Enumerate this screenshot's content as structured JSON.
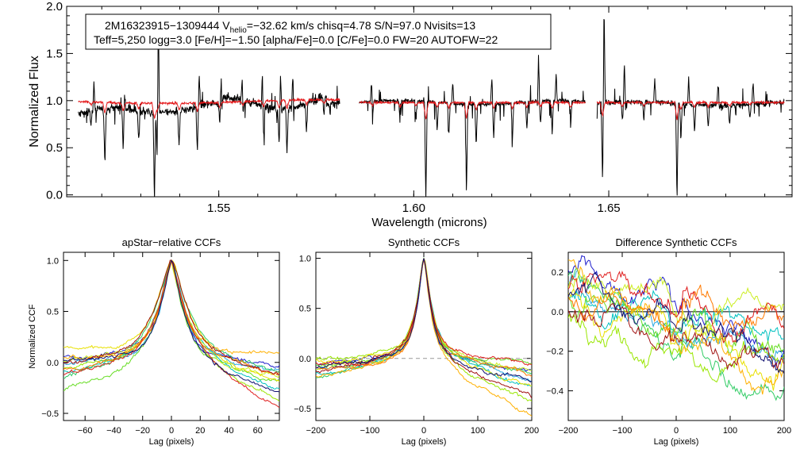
{
  "chart_data": [
    {
      "type": "line",
      "title": "",
      "xlabel": "Wavelength (microns)",
      "ylabel": "Normalized Flux",
      "xlim": [
        1.511,
        1.697
      ],
      "ylim": [
        -0.02,
        2.0
      ],
      "xticks": [
        "1.55",
        "1.60",
        "1.65"
      ],
      "yticks": [
        "0.0",
        "0.5",
        "1.0",
        "1.5",
        "2.0"
      ],
      "info_lines": {
        "line1_a": "2M16323915−1309444  V",
        "line1_sub": "helio",
        "line1_b": "=−32.62 km/s  chisq=4.78  S/N=97.0  Nvisits=13",
        "line2": "Teff=5,250 logg=3.0 [Fe/H]=−1.50 [alpha/Fe]=0.0 [C/Fe]=0.0 FW=20 AUTOFW=22"
      },
      "detectors": [
        {
          "range": [
            1.514,
            1.581
          ],
          "slope": 0.55,
          "wiggle": 0.07
        },
        {
          "range": [
            1.586,
            1.644
          ],
          "slope": 0.0,
          "wiggle": 0.03
        },
        {
          "range": [
            1.647,
            1.695
          ],
          "slope": -0.1,
          "wiggle": 0.05
        }
      ],
      "series": [
        {
          "name": "observed",
          "color": "#000000"
        },
        {
          "name": "model",
          "color": "#e41a1c"
        }
      ],
      "absorption_lines": [
        [
          1.5172,
          0.15
        ],
        [
          1.5208,
          0.6
        ],
        [
          1.5255,
          0.45
        ],
        [
          1.5295,
          0.35
        ],
        [
          1.5335,
          0.95
        ],
        [
          1.5342,
          0.5
        ],
        [
          1.5398,
          0.4
        ],
        [
          1.5445,
          0.5
        ],
        [
          1.5503,
          0.3
        ],
        [
          1.5562,
          0.2
        ],
        [
          1.5615,
          0.35
        ],
        [
          1.5655,
          0.45
        ],
        [
          1.5675,
          0.5
        ],
        [
          1.5725,
          0.3
        ],
        [
          1.577,
          0.2
        ],
        [
          1.5894,
          0.2
        ],
        [
          1.5965,
          0.25
        ],
        [
          1.6006,
          0.2
        ],
        [
          1.6031,
          1.05
        ],
        [
          1.606,
          0.3
        ],
        [
          1.609,
          0.35
        ],
        [
          1.6135,
          1.0
        ],
        [
          1.616,
          0.45
        ],
        [
          1.6205,
          0.35
        ],
        [
          1.6253,
          0.4
        ],
        [
          1.629,
          0.3
        ],
        [
          1.6325,
          0.25
        ],
        [
          1.6355,
          0.35
        ],
        [
          1.6402,
          0.3
        ],
        [
          1.6484,
          0.8
        ],
        [
          1.6535,
          0.2
        ],
        [
          1.659,
          0.2
        ],
        [
          1.6675,
          1.05
        ],
        [
          1.6685,
          0.4
        ],
        [
          1.672,
          0.3
        ],
        [
          1.6755,
          0.25
        ],
        [
          1.681,
          0.2
        ],
        [
          1.6862,
          0.15
        ]
      ],
      "emission_spikes": [
        [
          1.518,
          0.3
        ],
        [
          1.5258,
          0.18
        ],
        [
          1.5345,
          1.05
        ],
        [
          1.545,
          0.32
        ],
        [
          1.5505,
          0.25
        ],
        [
          1.556,
          0.28
        ],
        [
          1.5612,
          0.35
        ],
        [
          1.5658,
          0.4
        ],
        [
          1.569,
          0.4
        ],
        [
          1.5892,
          0.3
        ],
        [
          1.61,
          0.25
        ],
        [
          1.62,
          0.3
        ],
        [
          1.632,
          0.45
        ],
        [
          1.6365,
          0.3
        ],
        [
          1.6488,
          1.05
        ],
        [
          1.654,
          0.4
        ],
        [
          1.6618,
          0.25
        ],
        [
          1.6705,
          0.28
        ],
        [
          1.678,
          0.22
        ],
        [
          1.687,
          0.25
        ]
      ]
    },
    {
      "type": "line",
      "title": "apStar−relative CCFs",
      "xlabel": "Lag (pixels)",
      "ylabel": "Normalized CCF",
      "xlim": [
        -75,
        75
      ],
      "ylim": [
        -0.57,
        1.08
      ],
      "xticks": [
        -60,
        -40,
        -20,
        0,
        20,
        40,
        60
      ],
      "yticks": [
        -0.5,
        0.0,
        0.5,
        1.0
      ],
      "yticklabels": [
        "−0.5",
        "0.0",
        "0.5",
        "1.0"
      ],
      "xticklabels": [
        "−60",
        "−40",
        "−20",
        "0",
        "20",
        "40",
        "60"
      ],
      "peak": 1.0,
      "wing_left": [
        0.05,
        -0.05,
        -0.12,
        -0.2,
        -0.3,
        -0.08,
        -0.02,
        0.1,
        0.02,
        -0.1,
        -0.15,
        -0.04,
        0.0
      ],
      "wing_right": [
        -0.05,
        -0.1,
        -0.3,
        -0.15,
        -0.2,
        -0.4,
        -0.12,
        -0.25,
        0.05,
        -0.12,
        -0.48,
        -0.18,
        -0.3
      ],
      "width": 8
    },
    {
      "type": "line",
      "title": "Synthetic CCFs",
      "xlabel": "Lag (pixels)",
      "ylabel": "",
      "xlim": [
        -200,
        200
      ],
      "ylim": [
        -0.62,
        1.06
      ],
      "xticks": [
        -200,
        -100,
        0,
        100,
        200
      ],
      "xticklabels": [
        "−200",
        "−100",
        "0",
        "100",
        "200"
      ],
      "yticks": [
        -0.5,
        0.0,
        0.5,
        1.0
      ],
      "yticklabels": [
        "−0.5",
        "0.0",
        "0.5",
        "1.0"
      ],
      "peak": 1.0,
      "wing_left": [
        -0.05,
        -0.1,
        -0.15,
        -0.2,
        -0.08,
        0.0,
        -0.12,
        -0.03,
        -0.18,
        -0.1,
        -0.06,
        -0.14,
        -0.09
      ],
      "wing_right": [
        -0.1,
        -0.2,
        -0.3,
        -0.15,
        -0.05,
        -0.4,
        -0.12,
        -0.25,
        -0.55,
        -0.18,
        -0.08,
        -0.35,
        -0.2
      ],
      "width": 12,
      "zero_line": true
    },
    {
      "type": "line",
      "title": "Difference Synthetic CCFs",
      "xlabel": "Lag (pixels)",
      "ylabel": "",
      "xlim": [
        -200,
        200
      ],
      "ylim": [
        -0.55,
        0.3
      ],
      "xticks": [
        -200,
        -100,
        0,
        100,
        200
      ],
      "xticklabels": [
        "−200",
        "−100",
        "0",
        "100",
        "200"
      ],
      "yticks": [
        -0.4,
        -0.2,
        0.0,
        0.2
      ],
      "yticklabels": [
        "−0.4",
        "−0.2",
        "0.0",
        "0.2"
      ],
      "start_levels": [
        0.18,
        0.1,
        0.05,
        0.2,
        0.12,
        0.0,
        0.15,
        0.08,
        0.22,
        0.03,
        0.14,
        0.06,
        0.1
      ],
      "end_levels": [
        -0.1,
        -0.25,
        -0.05,
        -0.5,
        -0.15,
        -0.3,
        0.0,
        -0.2,
        -0.35,
        -0.08,
        -0.12,
        -0.28,
        -0.18
      ],
      "zero_line": true
    }
  ],
  "ccf_colors": [
    "#1f1fcc",
    "#2aa9e0",
    "#00c0c0",
    "#33cc66",
    "#66dd22",
    "#99e600",
    "#ccee22",
    "#e8e000",
    "#ffb000",
    "#ff7a00",
    "#e02020",
    "#a01010",
    "#101070"
  ]
}
